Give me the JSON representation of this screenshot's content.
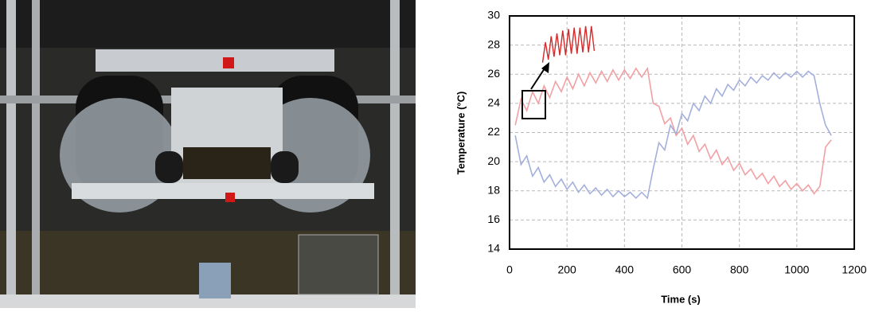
{
  "chart_data": {
    "type": "line",
    "xlabel": "Time (s)",
    "ylabel": "Temperature (°C)",
    "xlim": [
      0,
      1200
    ],
    "xticks": [
      0,
      200,
      400,
      600,
      800,
      1000,
      1200
    ],
    "ylim": [
      14,
      30
    ],
    "yticks": [
      14,
      16,
      18,
      20,
      22,
      24,
      26,
      28,
      30
    ],
    "grid": true,
    "x": [
      20,
      40,
      60,
      80,
      100,
      120,
      140,
      160,
      180,
      200,
      220,
      240,
      260,
      280,
      300,
      320,
      340,
      360,
      380,
      400,
      420,
      440,
      460,
      480,
      500,
      520,
      540,
      560,
      580,
      600,
      620,
      640,
      660,
      680,
      700,
      720,
      740,
      760,
      780,
      800,
      820,
      840,
      860,
      880,
      900,
      920,
      940,
      960,
      980,
      1000,
      1020,
      1040,
      1060,
      1080,
      1100,
      1120
    ],
    "series": [
      {
        "color": "#f2a0a4",
        "values": [
          22.5,
          24.3,
          23.5,
          24.8,
          24.0,
          25.2,
          24.4,
          25.5,
          24.8,
          25.8,
          25.0,
          26.0,
          25.2,
          26.1,
          25.4,
          26.2,
          25.5,
          26.3,
          25.6,
          26.3,
          25.7,
          26.4,
          25.8,
          26.4,
          24.0,
          23.8,
          22.6,
          23.0,
          21.8,
          22.3,
          21.2,
          21.8,
          20.7,
          21.2,
          20.2,
          20.8,
          19.8,
          20.3,
          19.4,
          19.9,
          19.1,
          19.5,
          18.8,
          19.2,
          18.5,
          19.0,
          18.3,
          18.7,
          18.1,
          18.5,
          18.0,
          18.4,
          17.8,
          18.3,
          21.0,
          21.5
        ]
      },
      {
        "color": "#a4b0dc",
        "values": [
          21.8,
          19.8,
          20.4,
          19.0,
          19.6,
          18.6,
          19.1,
          18.3,
          18.8,
          18.1,
          18.6,
          17.9,
          18.4,
          17.8,
          18.2,
          17.7,
          18.1,
          17.6,
          18.0,
          17.6,
          17.9,
          17.5,
          17.9,
          17.5,
          19.5,
          21.3,
          20.8,
          22.5,
          21.9,
          23.3,
          22.8,
          24.0,
          23.5,
          24.5,
          24.0,
          25.0,
          24.5,
          25.3,
          24.9,
          25.6,
          25.2,
          25.8,
          25.4,
          25.9,
          25.6,
          26.1,
          25.7,
          26.1,
          25.8,
          26.2,
          25.8,
          26.2,
          25.9,
          24.0,
          22.5,
          21.8
        ]
      }
    ],
    "inset": {
      "color": "#d42a2a",
      "x": [
        115,
        125,
        135,
        145,
        155,
        165,
        175,
        185,
        195,
        205,
        215,
        225,
        235,
        245,
        255,
        265,
        275,
        285,
        295
      ],
      "values": [
        26.8,
        28.2,
        27.0,
        28.6,
        27.2,
        28.8,
        27.3,
        29.0,
        27.3,
        29.1,
        27.4,
        29.2,
        27.4,
        29.2,
        27.5,
        29.3,
        27.5,
        29.3,
        27.6
      ]
    }
  }
}
